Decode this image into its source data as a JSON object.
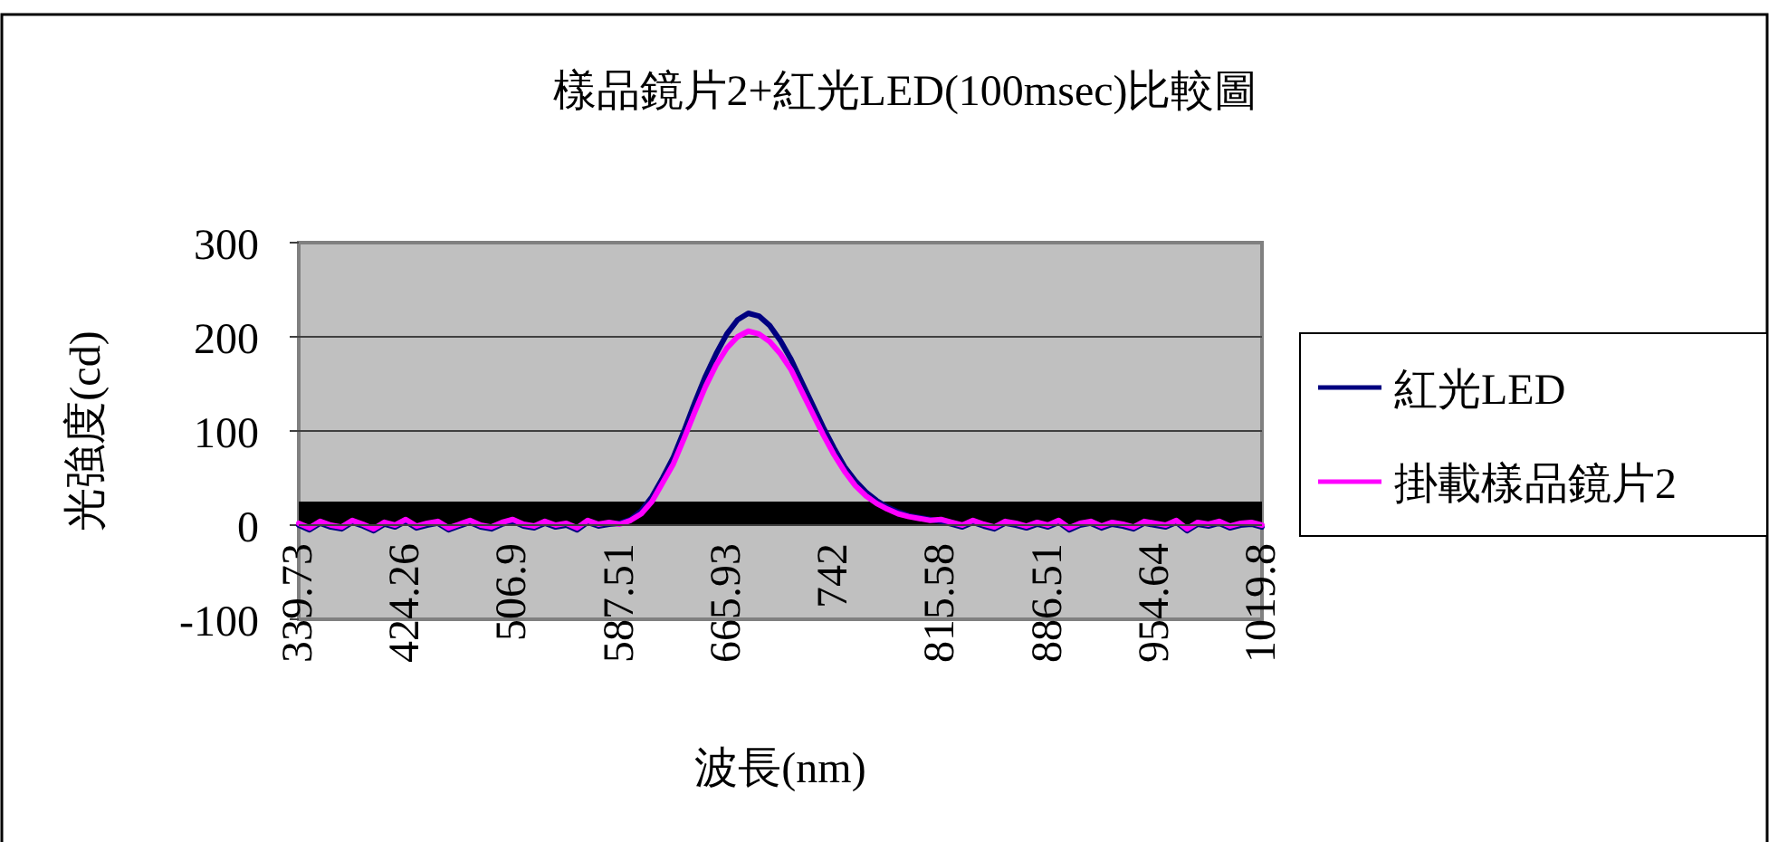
{
  "chart_data": {
    "type": "line",
    "title": "樣品鏡片2+紅光LED(100msec)比較圖",
    "xlabel": "波長(nm)",
    "ylabel": "光強度(cd)",
    "categories": [
      "339.73",
      null,
      null,
      null,
      null,
      null,
      null,
      null,
      null,
      null,
      "424.26",
      null,
      null,
      null,
      null,
      null,
      null,
      null,
      null,
      null,
      "506.9",
      null,
      null,
      null,
      null,
      null,
      null,
      null,
      null,
      null,
      "587.51",
      null,
      null,
      null,
      null,
      null,
      null,
      null,
      null,
      null,
      "665.93",
      null,
      null,
      null,
      null,
      null,
      null,
      null,
      null,
      null,
      "742",
      null,
      null,
      null,
      null,
      null,
      null,
      null,
      null,
      null,
      "815.58",
      null,
      null,
      null,
      null,
      null,
      null,
      null,
      null,
      null,
      "886.51",
      null,
      null,
      null,
      null,
      null,
      null,
      null,
      null,
      null,
      "954.64",
      null,
      null,
      null,
      null,
      null,
      null,
      null,
      null,
      null,
      "1019.8"
    ],
    "series": [
      {
        "name": "紅光LED",
        "color": "#000080",
        "values": [
          0,
          -5,
          2,
          -2,
          -4,
          3,
          -1,
          -6,
          1,
          -2,
          4,
          -3,
          0,
          2,
          -5,
          -1,
          3,
          -2,
          -4,
          1,
          4,
          -1,
          -3,
          2,
          -2,
          0,
          -5,
          3,
          -1,
          1,
          2,
          6,
          15,
          30,
          50,
          72,
          100,
          130,
          158,
          182,
          203,
          218,
          225,
          222,
          212,
          196,
          176,
          152,
          128,
          104,
          82,
          62,
          47,
          35,
          26,
          19,
          14,
          10,
          8,
          6,
          4,
          1,
          -2,
          3,
          -1,
          -4,
          2,
          0,
          -3,
          1,
          -2,
          3,
          -5,
          0,
          2,
          -3,
          1,
          -1,
          -4,
          2,
          0,
          -2,
          3,
          -6,
          1,
          -1,
          2,
          -3,
          0,
          1,
          -2
        ]
      },
      {
        "name": "掛載樣品鏡片2",
        "color": "#ff00ff",
        "values": [
          2,
          -3,
          4,
          0,
          -2,
          5,
          1,
          -4,
          3,
          0,
          6,
          -1,
          2,
          4,
          -3,
          1,
          5,
          0,
          -2,
          3,
          6,
          1,
          -1,
          4,
          0,
          2,
          -3,
          5,
          1,
          3,
          1,
          5,
          12,
          25,
          45,
          65,
          92,
          120,
          147,
          170,
          188,
          200,
          206,
          203,
          195,
          182,
          165,
          142,
          119,
          96,
          75,
          57,
          42,
          31,
          23,
          17,
          12,
          9,
          7,
          5,
          6,
          3,
          0,
          5,
          1,
          -2,
          4,
          2,
          -1,
          3,
          0,
          5,
          -3,
          2,
          4,
          -1,
          3,
          1,
          -2,
          4,
          2,
          0,
          5,
          -4,
          3,
          1,
          4,
          -1,
          2,
          3,
          0
        ]
      }
    ],
    "bands": [
      {
        "axis": "y",
        "from": 0,
        "to": 25,
        "color": "#000000"
      }
    ],
    "ylim": [
      -100,
      300
    ],
    "yticks": [
      -100,
      0,
      100,
      200,
      300
    ],
    "grid": "y",
    "legend": "right",
    "marker": "none",
    "line_style": "solid"
  }
}
